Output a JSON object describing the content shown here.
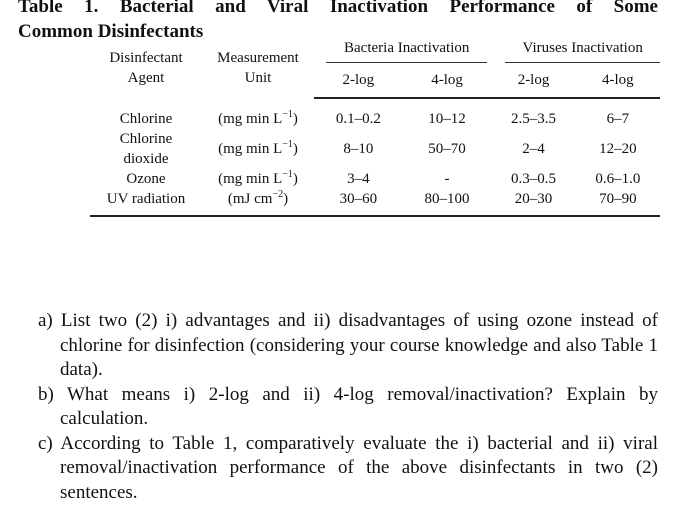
{
  "caption": {
    "line1": "Table 1. Bacterial and Viral Inactivation Performance of Some",
    "line2": "Common Disinfectants"
  },
  "table": {
    "headers": {
      "agent": [
        "Disinfectant",
        "Agent"
      ],
      "unit": [
        "Measurement",
        "Unit"
      ],
      "bacteria_group": "Bacteria Inactivation",
      "viruses_group": "Viruses Inactivation",
      "sub": [
        "2-log",
        "4-log",
        "2-log",
        "4-log"
      ]
    },
    "rows": [
      {
        "agent": [
          "Chlorine"
        ],
        "unit_base": "(mg min L",
        "unit_exp": "−1",
        "unit_tail": ")",
        "b2": "0.1–0.2",
        "b4": "10–12",
        "v2": "2.5–3.5",
        "v4": "6–7"
      },
      {
        "agent": [
          "Chlorine",
          "dioxide"
        ],
        "unit_base": "(mg min L",
        "unit_exp": "−1",
        "unit_tail": ")",
        "b2": "8–10",
        "b4": "50–70",
        "v2": "2–4",
        "v4": "12–20"
      },
      {
        "agent": [
          "Ozone"
        ],
        "unit_base": "(mg min L",
        "unit_exp": "−1",
        "unit_tail": ")",
        "b2": "3–4",
        "b4": "-",
        "v2": "0.3–0.5",
        "v4": "0.6–1.0"
      },
      {
        "agent": [
          "UV radiation"
        ],
        "unit_base": "(mJ cm",
        "unit_exp": "−2",
        "unit_tail": ")",
        "b2": "30–60",
        "b4": "80–100",
        "v2": "20–30",
        "v4": "70–90"
      }
    ]
  },
  "questions": [
    "a) List two (2) i) advantages and ii) disadvantages of using ozone instead of chlorine for disinfection (considering your course knowledge and also Table 1 data).",
    "b) What means i) 2-log and ii) 4-log removal/inactivation? Explain by calculation.",
    "c) According to Table 1, comparatively evaluate the i) bacterial and ii) viral removal/inactivation performance of the above disinfectants in two (2) sentences."
  ]
}
